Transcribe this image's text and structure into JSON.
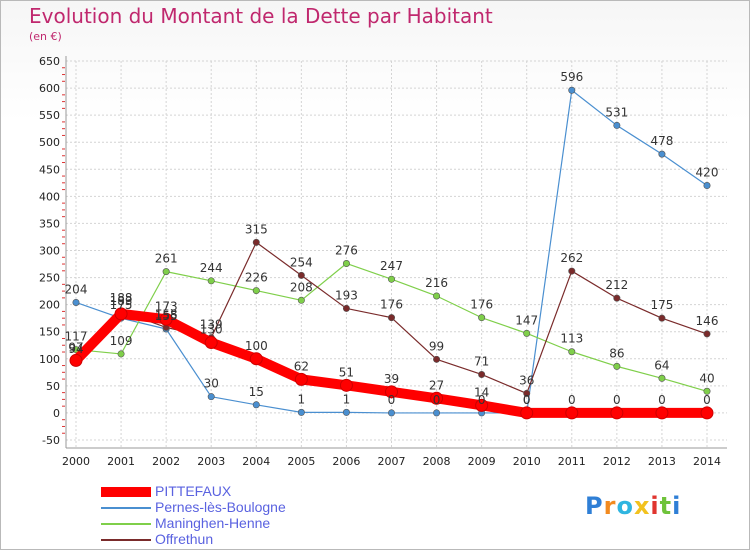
{
  "chart_data": {
    "type": "line",
    "title": "Evolution du Montant de la Dette par Habitant",
    "subtitle": "(en €)",
    "x": [
      "2000",
      "2001",
      "2002",
      "2003",
      "2004",
      "2005",
      "2006",
      "2007",
      "2008",
      "2009",
      "2010",
      "2011",
      "2012",
      "2013",
      "2014"
    ],
    "ylim": [
      -50,
      650
    ],
    "yticks": [
      -50,
      0,
      50,
      100,
      150,
      200,
      250,
      300,
      350,
      400,
      450,
      500,
      550,
      600,
      650
    ],
    "grid": true,
    "legend_position": "bottom-left",
    "series": [
      {
        "name": "PITTEFAUX",
        "color": "#ff0000",
        "values": [
          97,
          183,
          173,
          130,
          100,
          62,
          51,
          39,
          27,
          14,
          0,
          0,
          0,
          0,
          0
        ]
      },
      {
        "name": "Pernes-lès-Boulogne",
        "color": "#4a8fd0",
        "values": [
          204,
          175,
          155,
          30,
          15,
          1,
          1,
          0,
          0,
          0,
          0,
          596,
          531,
          478,
          420
        ]
      },
      {
        "name": "Maninghen-Henne",
        "color": "#7fcf4a",
        "values": [
          117,
          109,
          261,
          244,
          226,
          208,
          276,
          247,
          216,
          176,
          147,
          113,
          86,
          64,
          40
        ]
      },
      {
        "name": "Offrethun",
        "color": "#7a2b2b",
        "values": [
          94,
          188,
          158,
          139,
          315,
          254,
          193,
          176,
          99,
          71,
          36,
          262,
          212,
          175,
          146
        ]
      }
    ]
  },
  "branding": {
    "logo_text": "Proxiti",
    "logo_colors": [
      "#2f7fd6",
      "#f28a1f",
      "#2fb5e0",
      "#f2c21f",
      "#e0352f",
      "#6fc33a",
      "#2f7fd6"
    ]
  }
}
